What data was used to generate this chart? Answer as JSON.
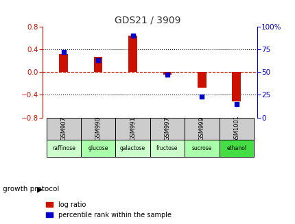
{
  "title": "GDS21 / 3909",
  "samples": [
    "GSM907",
    "GSM990",
    "GSM991",
    "GSM997",
    "GSM999",
    "GSM1001"
  ],
  "log_ratios": [
    0.32,
    0.27,
    0.65,
    -0.04,
    -0.27,
    -0.52
  ],
  "percentile_ranks": [
    72,
    63,
    90,
    47,
    23,
    15
  ],
  "growth_protocol": [
    "raffinose",
    "glucose",
    "galactose",
    "fructose",
    "sucrose",
    "ethanol"
  ],
  "green_shades": [
    "#ccffcc",
    "#aaffaa",
    "#ccffcc",
    "#ccffcc",
    "#aaffaa",
    "#44dd44"
  ],
  "bar_width": 0.25,
  "ylim_left": [
    -0.8,
    0.8
  ],
  "ylim_right": [
    0,
    100
  ],
  "yticks_left": [
    -0.8,
    -0.4,
    0.0,
    0.4,
    0.8
  ],
  "yticks_right": [
    0,
    25,
    50,
    75,
    100
  ],
  "red_color": "#cc1100",
  "blue_color": "#0000cc",
  "bg_color": "#ffffff",
  "gray_color": "#cccccc",
  "legend_red": "log ratio",
  "legend_blue": "percentile rank within the sample",
  "growth_label": "growth protocol",
  "title_color": "#333333",
  "left_axis_color": "#cc1100",
  "right_axis_color": "#0000cc"
}
